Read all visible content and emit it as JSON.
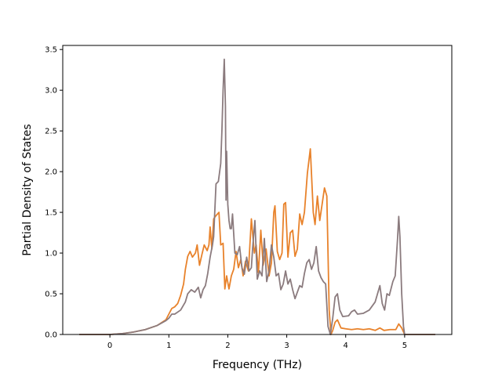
{
  "chart_data": {
    "type": "line",
    "title": "",
    "xlabel": "Frequency (THz)",
    "ylabel": "Partial Density of States",
    "xlim": [
      -0.8,
      5.8
    ],
    "ylim": [
      0.0,
      3.55
    ],
    "xticks": [
      0,
      1,
      2,
      3,
      4,
      5
    ],
    "xtick_labels": [
      "0",
      "1",
      "2",
      "3",
      "4",
      "5"
    ],
    "yticks": [
      0.0,
      0.5,
      1.0,
      1.5,
      2.0,
      2.5,
      3.0,
      3.5
    ],
    "ytick_labels": [
      "0.0",
      "0.5",
      "1.0",
      "1.5",
      "2.0",
      "2.5",
      "3.0",
      "3.5"
    ],
    "grid": false,
    "series": [
      {
        "color": "#e8822b",
        "points": [
          [
            -0.52,
            0
          ],
          [
            0,
            0
          ],
          [
            0.2,
            0.01
          ],
          [
            0.4,
            0.03
          ],
          [
            0.6,
            0.06
          ],
          [
            0.8,
            0.11
          ],
          [
            0.95,
            0.18
          ],
          [
            1.0,
            0.25
          ],
          [
            1.05,
            0.32
          ],
          [
            1.1,
            0.34
          ],
          [
            1.15,
            0.38
          ],
          [
            1.2,
            0.48
          ],
          [
            1.25,
            0.62
          ],
          [
            1.28,
            0.8
          ],
          [
            1.32,
            0.96
          ],
          [
            1.36,
            1.02
          ],
          [
            1.4,
            0.95
          ],
          [
            1.45,
            1.0
          ],
          [
            1.48,
            1.1
          ],
          [
            1.52,
            0.85
          ],
          [
            1.56,
            0.98
          ],
          [
            1.6,
            1.1
          ],
          [
            1.65,
            1.03
          ],
          [
            1.68,
            1.1
          ],
          [
            1.7,
            1.32
          ],
          [
            1.73,
            1.05
          ],
          [
            1.76,
            1.42
          ],
          [
            1.8,
            1.46
          ],
          [
            1.85,
            1.5
          ],
          [
            1.88,
            1.1
          ],
          [
            1.92,
            1.12
          ],
          [
            1.95,
            0.56
          ],
          [
            1.98,
            0.72
          ],
          [
            2.02,
            0.56
          ],
          [
            2.06,
            0.72
          ],
          [
            2.1,
            0.8
          ],
          [
            2.14,
            1.02
          ],
          [
            2.18,
            0.82
          ],
          [
            2.22,
            0.92
          ],
          [
            2.26,
            0.72
          ],
          [
            2.3,
            0.9
          ],
          [
            2.35,
            0.78
          ],
          [
            2.4,
            1.42
          ],
          [
            2.45,
            1.0
          ],
          [
            2.48,
            1.1
          ],
          [
            2.52,
            0.76
          ],
          [
            2.56,
            1.28
          ],
          [
            2.6,
            0.85
          ],
          [
            2.65,
            1.05
          ],
          [
            2.7,
            0.72
          ],
          [
            2.74,
            0.88
          ],
          [
            2.78,
            1.5
          ],
          [
            2.8,
            1.58
          ],
          [
            2.84,
            1.02
          ],
          [
            2.88,
            0.92
          ],
          [
            2.92,
            1.0
          ],
          [
            2.95,
            1.6
          ],
          [
            2.98,
            1.62
          ],
          [
            3.02,
            0.95
          ],
          [
            3.06,
            1.25
          ],
          [
            3.1,
            1.28
          ],
          [
            3.14,
            0.96
          ],
          [
            3.18,
            1.05
          ],
          [
            3.22,
            1.48
          ],
          [
            3.26,
            1.35
          ],
          [
            3.3,
            1.5
          ],
          [
            3.35,
            1.98
          ],
          [
            3.4,
            2.28
          ],
          [
            3.45,
            1.5
          ],
          [
            3.48,
            1.35
          ],
          [
            3.52,
            1.7
          ],
          [
            3.56,
            1.4
          ],
          [
            3.6,
            1.6
          ],
          [
            3.64,
            1.8
          ],
          [
            3.68,
            1.7
          ],
          [
            3.72,
            0.3
          ],
          [
            3.75,
            0.0
          ],
          [
            3.78,
            0.05
          ],
          [
            3.82,
            0.15
          ],
          [
            3.86,
            0.18
          ],
          [
            3.92,
            0.08
          ],
          [
            4.0,
            0.07
          ],
          [
            4.1,
            0.06
          ],
          [
            4.2,
            0.07
          ],
          [
            4.3,
            0.06
          ],
          [
            4.4,
            0.07
          ],
          [
            4.5,
            0.05
          ],
          [
            4.58,
            0.08
          ],
          [
            4.65,
            0.05
          ],
          [
            4.75,
            0.06
          ],
          [
            4.85,
            0.06
          ],
          [
            4.9,
            0.13
          ],
          [
            4.95,
            0.08
          ],
          [
            5.0,
            0
          ],
          [
            5.52,
            0
          ]
        ]
      },
      {
        "color": "#8b7b7e",
        "points": [
          [
            -0.52,
            0
          ],
          [
            0,
            0
          ],
          [
            0.2,
            0.01
          ],
          [
            0.4,
            0.03
          ],
          [
            0.6,
            0.06
          ],
          [
            0.8,
            0.11
          ],
          [
            0.95,
            0.17
          ],
          [
            1.0,
            0.2
          ],
          [
            1.05,
            0.25
          ],
          [
            1.1,
            0.25
          ],
          [
            1.2,
            0.3
          ],
          [
            1.28,
            0.4
          ],
          [
            1.32,
            0.5
          ],
          [
            1.38,
            0.55
          ],
          [
            1.44,
            0.52
          ],
          [
            1.5,
            0.58
          ],
          [
            1.54,
            0.45
          ],
          [
            1.58,
            0.55
          ],
          [
            1.62,
            0.6
          ],
          [
            1.66,
            0.75
          ],
          [
            1.7,
            0.95
          ],
          [
            1.74,
            1.1
          ],
          [
            1.76,
            1.2
          ],
          [
            1.8,
            1.85
          ],
          [
            1.84,
            1.88
          ],
          [
            1.88,
            2.1
          ],
          [
            1.9,
            2.5
          ],
          [
            1.92,
            3.0
          ],
          [
            1.94,
            3.38
          ],
          [
            1.96,
            2.8
          ],
          [
            1.97,
            1.65
          ],
          [
            1.98,
            2.25
          ],
          [
            2.0,
            1.6
          ],
          [
            2.02,
            1.4
          ],
          [
            2.04,
            1.3
          ],
          [
            2.06,
            1.3
          ],
          [
            2.08,
            1.48
          ],
          [
            2.12,
            1.0
          ],
          [
            2.16,
            0.98
          ],
          [
            2.2,
            1.08
          ],
          [
            2.24,
            0.82
          ],
          [
            2.28,
            0.74
          ],
          [
            2.32,
            0.95
          ],
          [
            2.36,
            0.78
          ],
          [
            2.4,
            0.82
          ],
          [
            2.42,
            1.05
          ],
          [
            2.46,
            1.4
          ],
          [
            2.5,
            0.68
          ],
          [
            2.54,
            0.78
          ],
          [
            2.58,
            0.72
          ],
          [
            2.62,
            1.18
          ],
          [
            2.66,
            0.65
          ],
          [
            2.7,
            0.78
          ],
          [
            2.74,
            1.1
          ],
          [
            2.78,
            0.95
          ],
          [
            2.82,
            0.72
          ],
          [
            2.86,
            0.75
          ],
          [
            2.9,
            0.55
          ],
          [
            2.94,
            0.62
          ],
          [
            2.98,
            0.78
          ],
          [
            3.02,
            0.62
          ],
          [
            3.06,
            0.68
          ],
          [
            3.1,
            0.55
          ],
          [
            3.14,
            0.44
          ],
          [
            3.18,
            0.52
          ],
          [
            3.22,
            0.6
          ],
          [
            3.26,
            0.58
          ],
          [
            3.3,
            0.75
          ],
          [
            3.34,
            0.88
          ],
          [
            3.38,
            0.92
          ],
          [
            3.42,
            0.8
          ],
          [
            3.46,
            0.88
          ],
          [
            3.5,
            1.08
          ],
          [
            3.54,
            0.78
          ],
          [
            3.58,
            0.7
          ],
          [
            3.62,
            0.65
          ],
          [
            3.66,
            0.62
          ],
          [
            3.7,
            0.1
          ],
          [
            3.74,
            0.0
          ],
          [
            3.78,
            0.2
          ],
          [
            3.82,
            0.46
          ],
          [
            3.86,
            0.5
          ],
          [
            3.9,
            0.3
          ],
          [
            3.95,
            0.22
          ],
          [
            4.05,
            0.23
          ],
          [
            4.1,
            0.28
          ],
          [
            4.15,
            0.3
          ],
          [
            4.2,
            0.25
          ],
          [
            4.3,
            0.26
          ],
          [
            4.4,
            0.3
          ],
          [
            4.5,
            0.4
          ],
          [
            4.58,
            0.6
          ],
          [
            4.62,
            0.38
          ],
          [
            4.66,
            0.3
          ],
          [
            4.7,
            0.5
          ],
          [
            4.74,
            0.48
          ],
          [
            4.8,
            0.65
          ],
          [
            4.84,
            0.72
          ],
          [
            4.88,
            1.18
          ],
          [
            4.9,
            1.45
          ],
          [
            4.92,
            1.2
          ],
          [
            4.95,
            0.5
          ],
          [
            4.98,
            0.1
          ],
          [
            5.0,
            0
          ],
          [
            5.52,
            0
          ]
        ]
      }
    ]
  }
}
